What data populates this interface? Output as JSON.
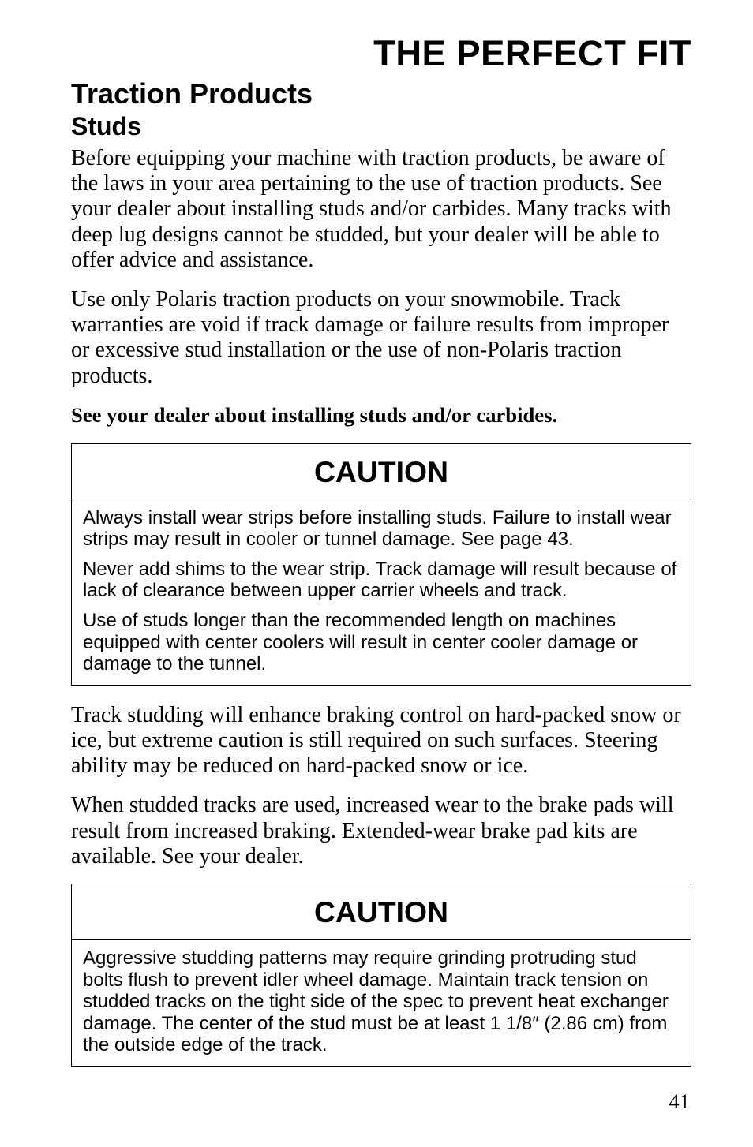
{
  "typography": {
    "page_title_size_pt": 34,
    "section_title_size_pt": 27,
    "subsection_title_size_pt": 24,
    "body_size_pt": 21,
    "bold_line_size_pt": 20,
    "caution_header_size_pt": 28,
    "caution_body_size_pt": 18,
    "page_number_size_pt": 20
  },
  "colors": {
    "text": "#000000",
    "background": "#ffffff",
    "border": "#000000"
  },
  "header": {
    "page_title": "THE PERFECT FIT"
  },
  "section": {
    "title": "Traction Products",
    "subtitle": "Studs"
  },
  "paragraphs": {
    "p1": "Before equipping your machine with traction products, be aware of the laws in your area pertaining to the use of traction products. See your dealer about installing studs and/or carbides. Many tracks with deep lug designs cannot be studded, but your dealer will be able to offer advice and assistance.",
    "p2": "Use only Polaris traction products on your snowmobile. Track warranties are void if track damage or failure results from improper or excessive stud installation or the use of non-Polaris traction products.",
    "bold": "See your dealer about installing studs and/or carbides.",
    "p3": "Track studding will enhance braking control on hard-packed snow or ice, but extreme caution is still required on such surfaces. Steering ability may be reduced on hard-packed snow or ice.",
    "p4": "When studded tracks are used, increased wear to the brake pads will result from increased braking. Extended-wear brake pad kits are available. See your dealer."
  },
  "caution1": {
    "header": "CAUTION",
    "c1": "Always install wear strips before installing studs. Failure to install wear strips may result in cooler or tunnel damage. See page 43.",
    "c2": "Never add shims to the wear strip. Track damage will result because of lack of clearance between upper carrier wheels and track.",
    "c3": "Use of studs longer than the recommended length on machines equipped with center coolers will result in center cooler damage or damage to the tunnel."
  },
  "caution2": {
    "header": "CAUTION",
    "c1": "Aggressive studding patterns may require grinding protruding stud bolts flush to prevent idler wheel damage. Maintain track tension on studded tracks on the tight side of the spec to prevent heat exchanger damage. The center of the stud must be at least 1 1/8″ (2.86 cm) from the outside edge of the track."
  },
  "footer": {
    "page_number": "41"
  }
}
